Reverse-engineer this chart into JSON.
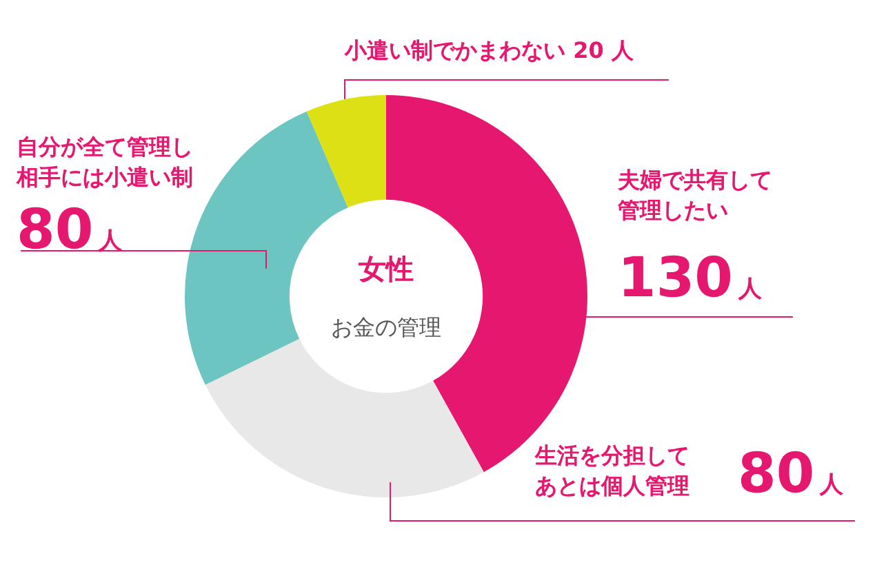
{
  "chart_data": {
    "type": "donut",
    "title": "女性",
    "subtitle": "お金の管理",
    "categories": [
      "夫婦で共有して管理したい",
      "生活を分担してあとは個人管理",
      "自分が全て管理し相手には小遣い制",
      "小遣い制でかまわない"
    ],
    "values": [
      130,
      80,
      80,
      20
    ],
    "value_labels": [
      "130人",
      "80人",
      "80人",
      "20 人"
    ],
    "colors": [
      "#e5176f",
      "#e8e8e8",
      "#6cc5c0",
      "#dce014"
    ],
    "legend": false
  }
}
